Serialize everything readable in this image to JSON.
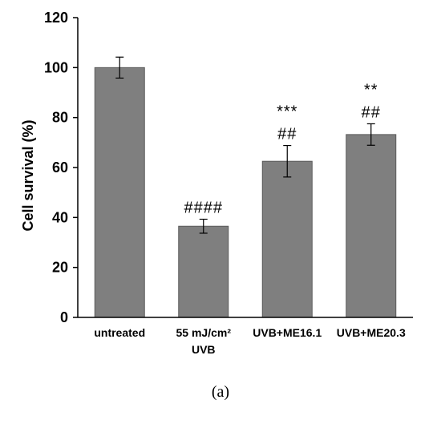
{
  "chart_data": {
    "type": "bar",
    "ylabel": "Cell survival (%)",
    "xlabel": "",
    "ylim": [
      0,
      120
    ],
    "yticks": [
      0,
      20,
      40,
      60,
      80,
      100,
      120
    ],
    "categories": [
      [
        "untreated"
      ],
      [
        "55 mJ/cm²",
        "UVB"
      ],
      [
        "UVB+ME16.1"
      ],
      [
        "UVB+ME20.3"
      ]
    ],
    "values": [
      100,
      36.5,
      62.5,
      73.2
    ],
    "errors": [
      4.2,
      2.8,
      6.3,
      4.3
    ],
    "annotations": [
      [],
      [
        "####"
      ],
      [
        "***",
        "##"
      ],
      [
        "**",
        "##"
      ]
    ],
    "bar_color": "#7f7f7f",
    "grid": false
  },
  "panel_label": "(a)"
}
